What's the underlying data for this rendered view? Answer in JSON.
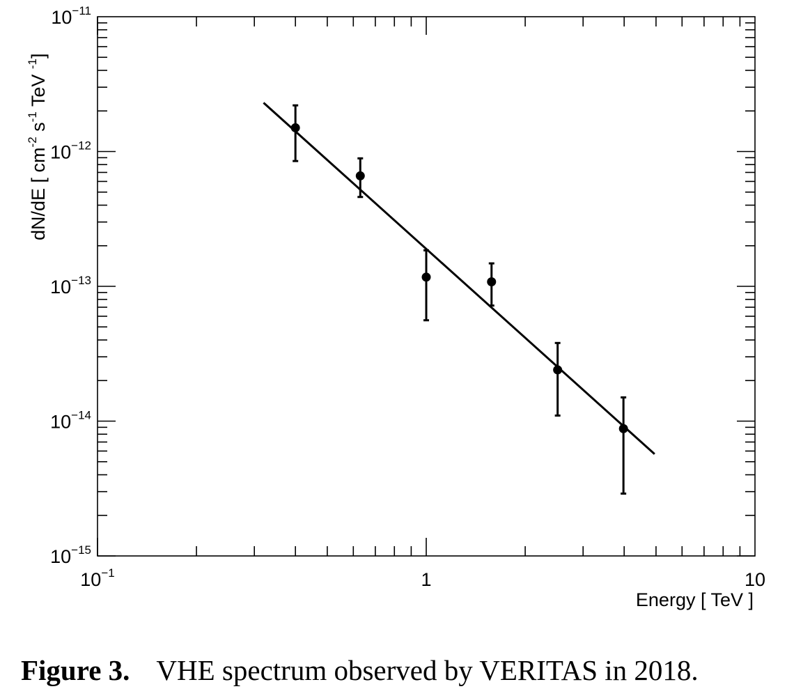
{
  "chart_data": {
    "type": "scatter",
    "x_scale": "log",
    "y_scale": "log",
    "xlim": [
      0.1,
      10
    ],
    "ylim": [
      1e-15,
      1e-11
    ],
    "xlabel": "Energy [ TeV ]",
    "ylabel": {
      "base": "dN/dE [ cm",
      "exp1": "-2",
      "mid1": " s",
      "exp2": "-1",
      "mid2": " TeV ",
      "exp3": "-1",
      "end": "]"
    },
    "x_ticks": [
      {
        "value": 0.1,
        "base": "10",
        "exp": "−1"
      },
      {
        "value": 1,
        "base": "1",
        "exp": ""
      },
      {
        "value": 10,
        "base": "10",
        "exp": ""
      }
    ],
    "y_ticks": [
      {
        "value": 1e-11,
        "base": "10",
        "exp": "−11"
      },
      {
        "value": 1e-12,
        "base": "10",
        "exp": "−12"
      },
      {
        "value": 1e-13,
        "base": "10",
        "exp": "−13"
      },
      {
        "value": 1e-14,
        "base": "10",
        "exp": "−14"
      },
      {
        "value": 1e-15,
        "base": "10",
        "exp": "−15"
      }
    ],
    "points": [
      {
        "x": 0.4,
        "y": 1.5e-12,
        "y_low": 8.5e-13,
        "y_high": 2.2e-12
      },
      {
        "x": 0.63,
        "y": 6.6e-13,
        "y_low": 4.6e-13,
        "y_high": 8.9e-13
      },
      {
        "x": 1.0,
        "y": 1.17e-13,
        "y_low": 5.6e-14,
        "y_high": 1.85e-13
      },
      {
        "x": 1.58,
        "y": 1.08e-13,
        "y_low": 7.2e-14,
        "y_high": 1.48e-13
      },
      {
        "x": 2.51,
        "y": 2.4e-14,
        "y_low": 1.1e-14,
        "y_high": 3.8e-14
      },
      {
        "x": 3.98,
        "y": 8.8e-15,
        "y_low": 2.9e-15,
        "y_high": 1.5e-14
      }
    ],
    "fit_line": {
      "x": [
        0.32,
        4.95
      ],
      "y": [
        2.3e-12,
        5.7e-15
      ]
    },
    "grid": false,
    "legend": "none"
  },
  "caption": {
    "label": "Figure 3.",
    "text": "VHE spectrum observed by VERITAS in 2018."
  }
}
